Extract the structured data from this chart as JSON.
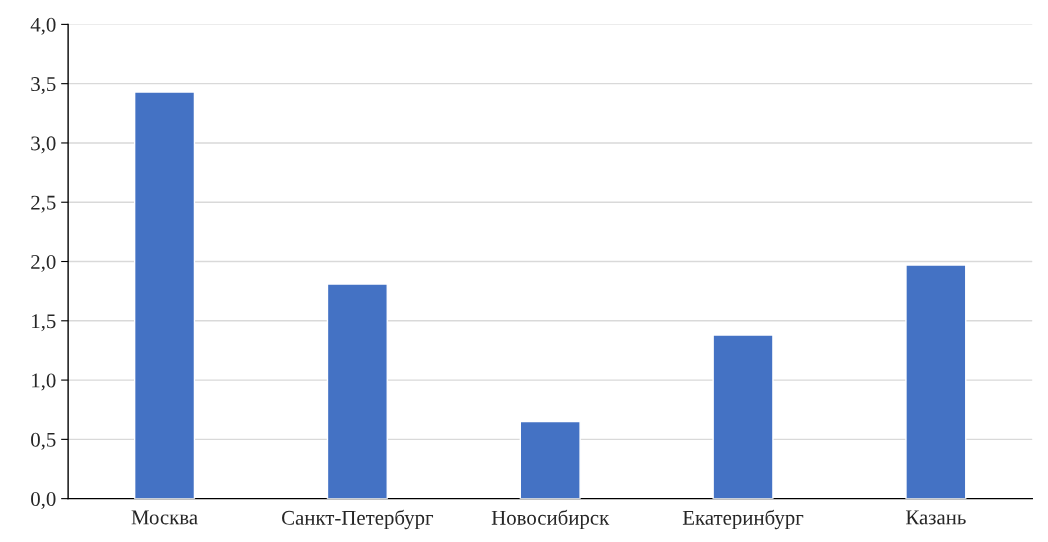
{
  "chart_data": {
    "type": "bar",
    "categories": [
      "Москва",
      "Санкт-Петербург",
      "Новосибирск",
      "Екатеринбург",
      "Казань"
    ],
    "values": [
      3.43,
      1.81,
      0.65,
      1.38,
      1.97
    ],
    "color": "#4472c4",
    "ylim": [
      0,
      4
    ],
    "yticks": [
      {
        "value": 0,
        "label": "0,0"
      },
      {
        "value": 0.5,
        "label": "0,5"
      },
      {
        "value": 1,
        "label": "1,0"
      },
      {
        "value": 1.5,
        "label": "1,5"
      },
      {
        "value": 2,
        "label": "2,0"
      },
      {
        "value": 2.5,
        "label": "2,5"
      },
      {
        "value": 3,
        "label": "3,0"
      },
      {
        "value": 3.5,
        "label": "3,5"
      },
      {
        "value": 4,
        "label": "4,0"
      }
    ],
    "grid": "y"
  }
}
